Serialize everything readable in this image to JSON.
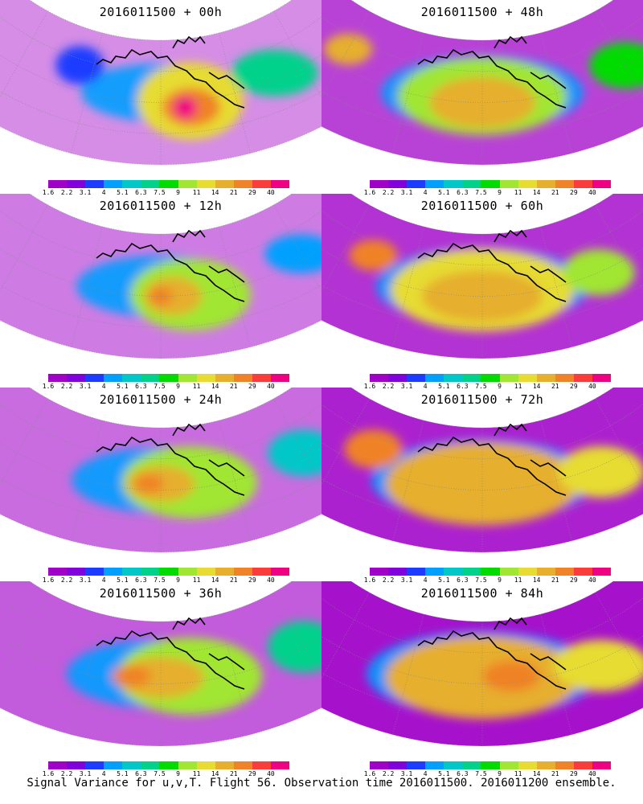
{
  "panels": [
    {
      "title": "2016011500 + 00h",
      "level": 0.15,
      "blobs": [
        [
          0.45,
          0.5,
          0.22,
          0.3,
          11
        ],
        [
          0.45,
          0.55,
          0.12,
          0.15,
          21
        ],
        [
          0.46,
          0.55,
          0.05,
          0.09,
          40
        ],
        [
          0.3,
          0.45,
          0.18,
          0.18,
          6.3
        ],
        [
          0.65,
          0.3,
          0.1,
          0.15,
          3.1
        ]
      ]
    },
    {
      "title": "2016011500 + 48h",
      "level": 0.6,
      "blobs": [
        [
          0.5,
          0.45,
          0.35,
          0.3,
          9
        ],
        [
          0.5,
          0.5,
          0.22,
          0.2,
          14
        ],
        [
          0.75,
          0.35,
          0.1,
          0.12,
          14
        ],
        [
          0.25,
          0.5,
          0.15,
          0.18,
          7.5
        ]
      ]
    },
    {
      "title": "2016011500 + 12h",
      "level": 0.25,
      "blobs": [
        [
          0.45,
          0.5,
          0.25,
          0.28,
          9
        ],
        [
          0.48,
          0.5,
          0.12,
          0.15,
          14
        ],
        [
          0.5,
          0.5,
          0.05,
          0.07,
          21
        ],
        [
          0.25,
          0.45,
          0.15,
          0.15,
          4
        ]
      ]
    },
    {
      "title": "2016011500 + 60h",
      "level": 0.7,
      "blobs": [
        [
          0.5,
          0.45,
          0.38,
          0.32,
          11
        ],
        [
          0.5,
          0.5,
          0.25,
          0.2,
          14
        ],
        [
          0.7,
          0.35,
          0.1,
          0.12,
          21
        ],
        [
          0.3,
          0.5,
          0.15,
          0.18,
          9
        ]
      ]
    },
    {
      "title": "2016011500 + 24h",
      "level": 0.35,
      "blobs": [
        [
          0.45,
          0.45,
          0.28,
          0.28,
          9
        ],
        [
          0.5,
          0.45,
          0.14,
          0.14,
          14
        ],
        [
          0.52,
          0.45,
          0.06,
          0.07,
          21
        ],
        [
          0.25,
          0.5,
          0.15,
          0.18,
          5.1
        ]
      ]
    },
    {
      "title": "2016011500 + 72h",
      "level": 0.8,
      "blobs": [
        [
          0.5,
          0.45,
          0.4,
          0.32,
          14
        ],
        [
          0.5,
          0.5,
          0.28,
          0.22,
          14
        ],
        [
          0.7,
          0.35,
          0.12,
          0.15,
          21
        ],
        [
          0.3,
          0.55,
          0.18,
          0.2,
          11
        ]
      ]
    },
    {
      "title": "2016011500 + 36h",
      "level": 0.45,
      "blobs": [
        [
          0.45,
          0.45,
          0.3,
          0.3,
          9
        ],
        [
          0.5,
          0.45,
          0.18,
          0.16,
          14
        ],
        [
          0.55,
          0.45,
          0.08,
          0.08,
          21
        ],
        [
          0.25,
          0.5,
          0.15,
          0.2,
          6.3
        ]
      ]
    },
    {
      "title": "2016011500 + 84h",
      "level": 0.9,
      "blobs": [
        [
          0.5,
          0.45,
          0.4,
          0.32,
          14
        ],
        [
          0.5,
          0.5,
          0.3,
          0.24,
          14
        ],
        [
          0.45,
          0.45,
          0.12,
          0.12,
          21
        ],
        [
          0.3,
          0.55,
          0.2,
          0.2,
          11
        ]
      ]
    }
  ],
  "colorbar": {
    "labels": [
      "1.6",
      "2.2",
      "3.1",
      "4",
      "5.1",
      "6.3",
      "7.5",
      "9",
      "11",
      "14",
      "21",
      "29",
      "40"
    ],
    "colors": [
      "#a000c8",
      "#8200dc",
      "#1e3cff",
      "#00a0ff",
      "#00c8c8",
      "#00d28c",
      "#00dc00",
      "#a0e632",
      "#e6dc32",
      "#e6af2d",
      "#f08228",
      "#fa3c3c",
      "#f00082"
    ]
  },
  "footer": "Signal Variance for u,v,T. Flight 56. Observation time 2016011500. 2016011200 ensemble."
}
